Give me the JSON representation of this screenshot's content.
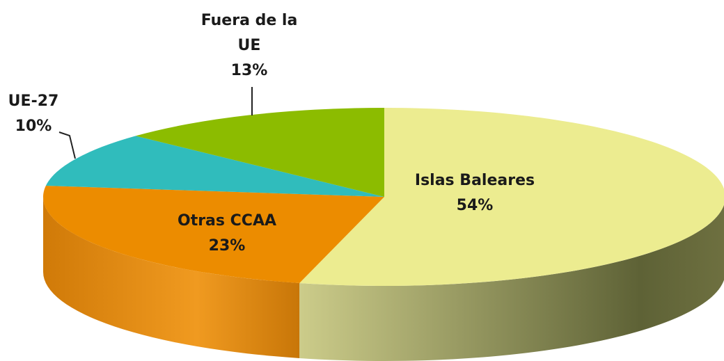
{
  "chart_data": {
    "type": "pie",
    "categories": [
      "Islas Baleares",
      "Otras CCAA",
      "UE-27",
      "Fuera de la UE"
    ],
    "values": [
      54,
      23,
      10,
      13
    ],
    "value_labels": [
      "54%",
      "23%",
      "10%",
      "13%"
    ],
    "colors": [
      "#ecec90",
      "#ec8c00",
      "#30bcbc",
      "#8cbc00"
    ]
  }
}
